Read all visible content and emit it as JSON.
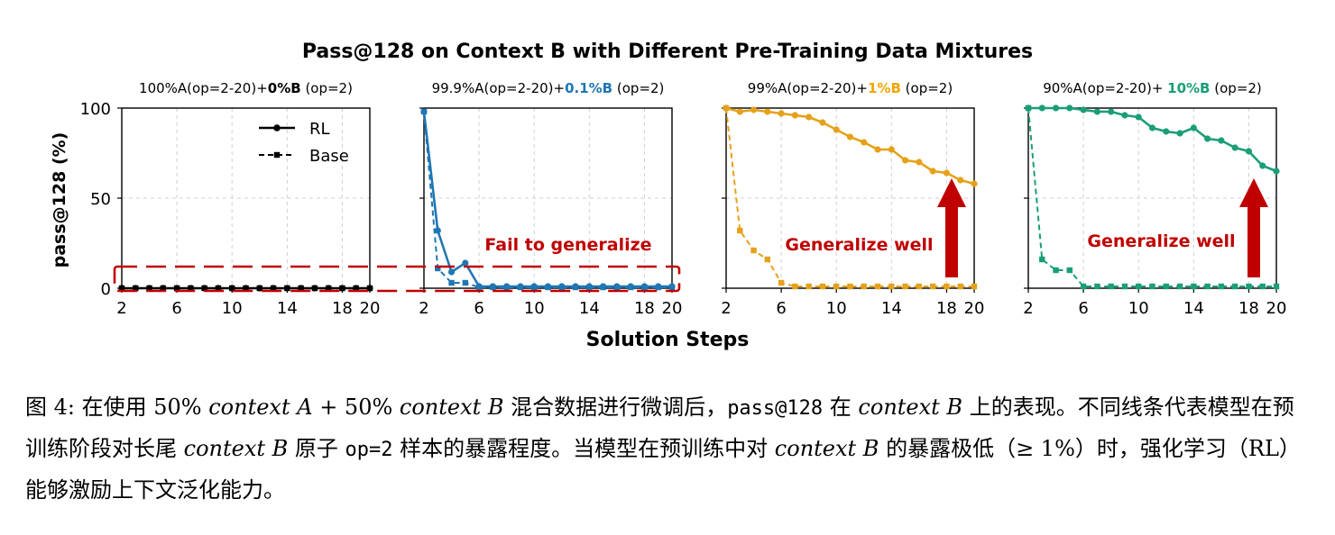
{
  "chart_data": {
    "type": "line",
    "title": "Pass@128 on Context B with Different Pre-Training Data Mixtures",
    "ylabel": "pass@128 (%)",
    "xlabel": "Solution Steps",
    "xlim": [
      2,
      20
    ],
    "ylim": [
      0,
      100
    ],
    "x_ticks": [
      2,
      6,
      10,
      14,
      18,
      20
    ],
    "y_ticks": [
      0,
      50,
      100
    ],
    "grid": true,
    "legend": {
      "placement": "top-center",
      "entries": [
        {
          "name": "RL",
          "style": "solid-circle"
        },
        {
          "name": "Base",
          "style": "dashed-square"
        }
      ]
    },
    "x": [
      2,
      3,
      4,
      5,
      6,
      7,
      8,
      9,
      10,
      11,
      12,
      13,
      14,
      15,
      16,
      17,
      18,
      19,
      20
    ],
    "panels": [
      {
        "title_prefix": "100%A(op=2-20)+",
        "title_highlight": "0%B",
        "title_suffix": " (op=2)",
        "color": "#000000",
        "highlight_color": "#000000",
        "series": [
          {
            "name": "RL",
            "values": [
              0,
              0,
              0,
              0,
              0,
              0,
              0,
              0,
              0,
              0,
              0,
              0,
              0,
              0,
              0,
              0,
              0,
              0,
              0
            ]
          },
          {
            "name": "Base",
            "values": [
              0,
              0,
              0,
              0,
              0,
              0,
              0,
              0,
              0,
              0,
              0,
              0,
              0,
              0,
              0,
              0,
              0,
              0,
              0
            ]
          }
        ],
        "annotation": "",
        "arrow": false
      },
      {
        "title_prefix": "99.9%A(op=2-20)+",
        "title_highlight": "0.1%B",
        "title_suffix": " (op=2)",
        "color": "#1f77b4",
        "highlight_color": "#1f77b4",
        "series": [
          {
            "name": "RL",
            "values": [
              98,
              32,
              9,
              14,
              1,
              1,
              1,
              1,
              1,
              1,
              1,
              1,
              1,
              1,
              1,
              1,
              1,
              1,
              1
            ]
          },
          {
            "name": "Base",
            "values": [
              98,
              11,
              3,
              3,
              0.5,
              0.5,
              0.5,
              0.5,
              0.5,
              0.5,
              0.5,
              0.5,
              0.5,
              0.5,
              0.5,
              0.5,
              0.5,
              0.5,
              0.5
            ]
          }
        ],
        "annotation": "Fail to generalize",
        "arrow": false
      },
      {
        "title_prefix": "99%A(op=2-20)+",
        "title_highlight": "1%B",
        "title_suffix": " (op=2)",
        "color": "#e6a11a",
        "highlight_color": "#f0a500",
        "series": [
          {
            "name": "RL",
            "values": [
              100,
              98,
              99,
              98,
              97,
              96,
              95,
              92,
              88,
              84,
              81,
              77,
              77,
              71,
              70,
              65,
              64,
              60,
              58
            ]
          },
          {
            "name": "Base",
            "values": [
              100,
              32,
              21,
              16,
              3,
              1,
              1,
              1,
              1,
              1,
              1,
              1,
              1,
              1,
              1,
              1,
              1,
              1,
              1
            ]
          }
        ],
        "annotation": "Generalize well",
        "arrow": true
      },
      {
        "title_prefix": "90%A(op=2-20)+ ",
        "title_highlight": "10%B",
        "title_suffix": " (op=2)",
        "color": "#1a9e77",
        "highlight_color": "#1a9e77",
        "series": [
          {
            "name": "RL",
            "values": [
              100,
              100,
              100,
              100,
              99,
              98,
              98,
              96,
              95,
              89,
              87,
              86,
              89,
              83,
              82,
              78,
              76,
              68,
              65
            ]
          },
          {
            "name": "Base",
            "values": [
              100,
              16,
              10,
              10,
              1,
              1,
              1,
              1,
              1,
              1,
              1,
              1,
              1,
              1,
              1,
              1,
              1,
              1,
              1
            ]
          }
        ],
        "annotation": "Generalize well",
        "arrow": true
      }
    ]
  },
  "annotation_color": "#c00000",
  "caption": {
    "p1": "图 4: 在使用 50% ",
    "p2": "context A",
    "p3": " + 50% ",
    "p4": "context B",
    "p5": " 混合数据进行微调后，",
    "p6": "pass@128",
    "p7": " 在 ",
    "p8": "context B",
    "p9": " 上的表现。不同线条代表模型在预训练阶段对长尾 ",
    "p10": "context B",
    "p11": " 原子 ",
    "p12": "op=2",
    "p13": " 样本的暴露程度。当模型在预训练中对 ",
    "p14": "context B",
    "p15": " 的暴露极低（≥ 1%）时，强化学习（RL）能够激励上下文泛化能力。"
  }
}
